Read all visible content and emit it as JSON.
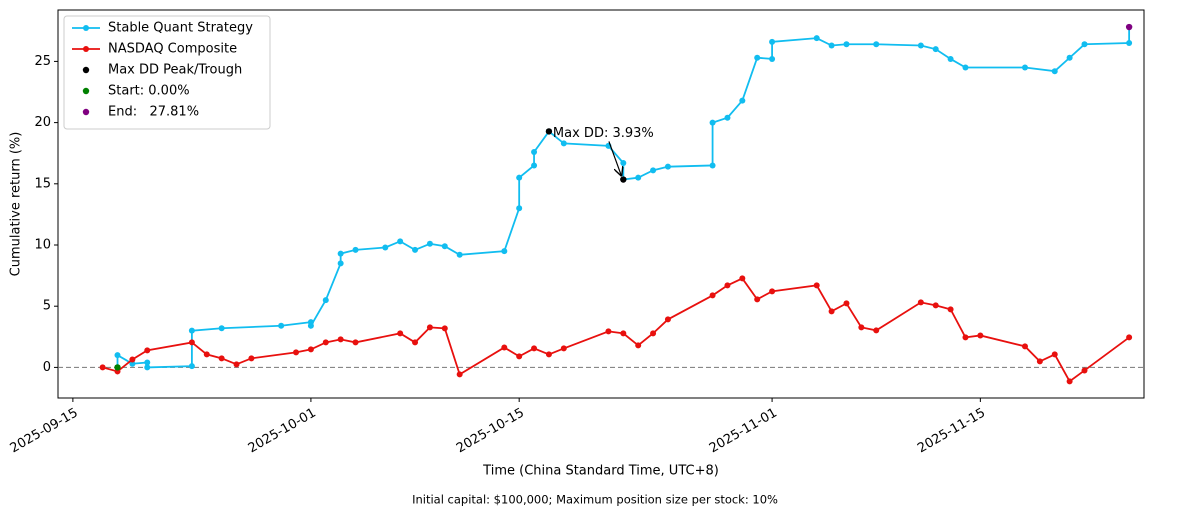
{
  "chart_data": {
    "type": "line",
    "xlabel": "Time (China Standard Time, UTC+8)",
    "ylabel": "Cumulative return (%)",
    "footnote": "Initial capital: $100,000; Maximum position size per stock: 10%",
    "annotation": "Max DD: 3.93%",
    "legend": "upper left",
    "reference_line": 0,
    "xlim": [
      "2025-09-14",
      "2025-11-26"
    ],
    "xticks": [
      "2025-09-15",
      "2025-10-01",
      "2025-10-15",
      "2025-11-01",
      "2025-11-15"
    ],
    "ylim": [
      -2.5,
      29.2
    ],
    "yticks": [
      0,
      5,
      10,
      15,
      20,
      25
    ],
    "series": [
      {
        "name": "Stable Quant Strategy",
        "color": "#11bdf0",
        "x": [
          "2025-09-18",
          "2025-09-18",
          "2025-09-19",
          "2025-09-20",
          "2025-09-20",
          "2025-09-23",
          "2025-09-23",
          "2025-09-25",
          "2025-09-29",
          "2025-10-01",
          "2025-10-01",
          "2025-10-02",
          "2025-10-03",
          "2025-10-03",
          "2025-10-04",
          "2025-10-06",
          "2025-10-07",
          "2025-10-08",
          "2025-10-09",
          "2025-10-10",
          "2025-10-11",
          "2025-10-14",
          "2025-10-15",
          "2025-10-15",
          "2025-10-16",
          "2025-10-16",
          "2025-10-17",
          "2025-10-18",
          "2025-10-21",
          "2025-10-22",
          "2025-10-22",
          "2025-10-23",
          "2025-10-24",
          "2025-10-25",
          "2025-10-28",
          "2025-10-28",
          "2025-10-29",
          "2025-10-30",
          "2025-10-31",
          "2025-11-01",
          "2025-11-01",
          "2025-11-04",
          "2025-11-05",
          "2025-11-06",
          "2025-11-08",
          "2025-11-11",
          "2025-11-12",
          "2025-11-13",
          "2025-11-14",
          "2025-11-18",
          "2025-11-20",
          "2025-11-21",
          "2025-11-22",
          "2025-11-25",
          "2025-11-25"
        ],
        "values": [
          0,
          1.0,
          0.3,
          0.4,
          0.0,
          0.1,
          3.0,
          3.2,
          3.4,
          3.7,
          3.4,
          5.5,
          8.5,
          9.3,
          9.6,
          9.8,
          10.3,
          9.6,
          10.1,
          9.9,
          9.2,
          9.5,
          13.0,
          15.5,
          16.5,
          17.6,
          19.28,
          18.3,
          18.1,
          16.7,
          15.35,
          15.5,
          16.1,
          16.4,
          16.5,
          20.0,
          20.4,
          21.8,
          25.3,
          25.2,
          26.6,
          26.9,
          26.3,
          26.4,
          26.4,
          26.3,
          26.0,
          25.2,
          24.5,
          24.5,
          24.2,
          25.3,
          26.4,
          26.5,
          27.81
        ]
      },
      {
        "name": "NASDAQ Composite",
        "color": "#e8100e",
        "x": [
          "2025-09-17",
          "2025-09-18",
          "2025-09-19",
          "2025-09-20",
          "2025-09-23",
          "2025-09-24",
          "2025-09-25",
          "2025-09-26",
          "2025-09-27",
          "2025-09-30",
          "2025-10-01",
          "2025-10-02",
          "2025-10-03",
          "2025-10-04",
          "2025-10-07",
          "2025-10-08",
          "2025-10-09",
          "2025-10-10",
          "2025-10-11",
          "2025-10-14",
          "2025-10-15",
          "2025-10-16",
          "2025-10-17",
          "2025-10-18",
          "2025-10-21",
          "2025-10-22",
          "2025-10-23",
          "2025-10-24",
          "2025-10-25",
          "2025-10-28",
          "2025-10-29",
          "2025-10-30",
          "2025-10-31",
          "2025-11-01",
          "2025-11-04",
          "2025-11-05",
          "2025-11-06",
          "2025-11-07",
          "2025-11-08",
          "2025-11-11",
          "2025-11-12",
          "2025-11-13",
          "2025-11-14",
          "2025-11-15",
          "2025-11-18",
          "2025-11-19",
          "2025-11-20",
          "2025-11-21",
          "2025-11-22",
          "2025-11-25"
        ],
        "values": [
          0,
          -0.33,
          0.65,
          1.39,
          2.04,
          1.06,
          0.74,
          0.25,
          0.74,
          1.23,
          1.47,
          2.04,
          2.29,
          2.04,
          2.78,
          2.04,
          3.27,
          3.19,
          -0.57,
          1.63,
          0.9,
          1.55,
          1.06,
          1.55,
          2.94,
          2.78,
          1.8,
          2.78,
          3.92,
          5.88,
          6.7,
          7.27,
          5.56,
          6.21,
          6.7,
          4.58,
          5.23,
          3.27,
          3.02,
          5.31,
          5.07,
          4.74,
          2.45,
          2.61,
          1.72,
          0.49,
          1.06,
          -1.14,
          -0.25,
          2.45
        ]
      }
    ],
    "markers": [
      {
        "name": "Max DD Peak/Trough",
        "color": "#000000",
        "x": [
          "2025-10-17",
          "2025-10-22"
        ],
        "values": [
          19.28,
          15.35
        ]
      },
      {
        "name": "Start: 0.00%",
        "color": "#008000",
        "x": [
          "2025-09-18"
        ],
        "values": [
          0
        ]
      },
      {
        "name": "End:   27.81%",
        "color": "#800080",
        "x": [
          "2025-11-25"
        ],
        "values": [
          27.81
        ]
      }
    ]
  }
}
